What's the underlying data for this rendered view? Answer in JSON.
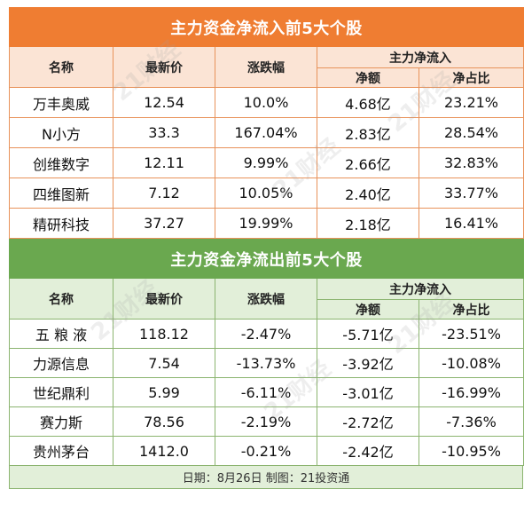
{
  "inflow": {
    "title": "主力资金净流入前5大个股",
    "headers": {
      "name": "名称",
      "price": "最新价",
      "change": "涨跌幅",
      "group": "主力净流入",
      "net": "净额",
      "ratio": "净占比"
    },
    "rows": [
      {
        "name": "万丰奥威",
        "price": "12.54",
        "change": "10.0%",
        "net": "4.68亿",
        "ratio": "23.21%"
      },
      {
        "name": "N小方",
        "price": "33.3",
        "change": "167.04%",
        "net": "2.83亿",
        "ratio": "28.54%"
      },
      {
        "name": "创维数字",
        "price": "12.11",
        "change": "9.99%",
        "net": "2.66亿",
        "ratio": "32.83%"
      },
      {
        "name": "四维图新",
        "price": "7.12",
        "change": "10.05%",
        "net": "2.40亿",
        "ratio": "33.77%"
      },
      {
        "name": "精研科技",
        "price": "37.27",
        "change": "19.99%",
        "net": "2.18亿",
        "ratio": "16.41%"
      }
    ]
  },
  "outflow": {
    "title": "主力资金净流出前5大个股",
    "headers": {
      "name": "名称",
      "price": "最新价",
      "change": "涨跌幅",
      "group": "主力净流入",
      "net": "净额",
      "ratio": "净占比"
    },
    "rows": [
      {
        "name": "五 粮 液",
        "price": "118.12",
        "change": "-2.47%",
        "net": "-5.71亿",
        "ratio": "-23.51%"
      },
      {
        "name": "力源信息",
        "price": "7.54",
        "change": "-13.73%",
        "net": "-3.92亿",
        "ratio": "-10.08%"
      },
      {
        "name": "世纪鼎利",
        "price": "5.99",
        "change": "-6.11%",
        "net": "-3.01亿",
        "ratio": "-16.99%"
      },
      {
        "name": "赛力斯",
        "price": "78.56",
        "change": "-2.19%",
        "net": "-2.72亿",
        "ratio": "-7.36%"
      },
      {
        "name": "贵州茅台",
        "price": "1412.0",
        "change": "-0.21%",
        "net": "-2.42亿",
        "ratio": "-10.95%"
      }
    ]
  },
  "footer": "日期：8月26日 制图：21投资通",
  "watermark": "21财经",
  "colors": {
    "orange": "#ef7d32",
    "orange_light": "#fbe4d5",
    "green": "#6aa84f",
    "green_light": "#e2efd9"
  }
}
